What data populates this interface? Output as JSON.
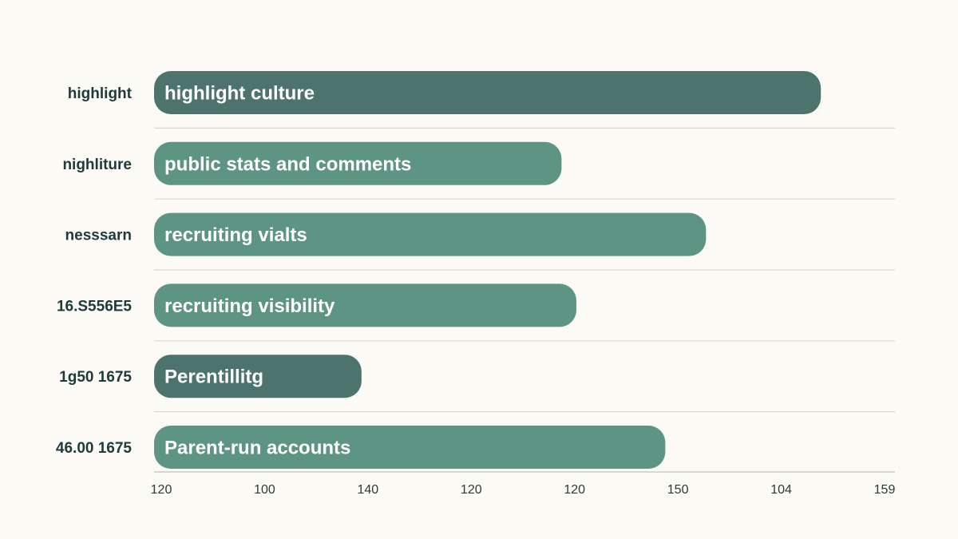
{
  "chart_data": {
    "type": "bar",
    "orientation": "horizontal",
    "categories": [
      "highlight",
      "nighliture",
      "nesssarn",
      "16.S556E5",
      "1g50 1675",
      "46.00 1675"
    ],
    "bar_labels": [
      "highlight culture",
      "public stats and comments",
      "recruiting vialts",
      "recruiting visibility",
      "Perentillitg",
      "Parent-run accounts"
    ],
    "values": [
      0.9,
      0.55,
      0.745,
      0.57,
      0.28,
      0.69
    ],
    "value_scale": "fraction of axis span (axis tick labels are not monotonic)",
    "bar_colors": [
      "#4d746c",
      "#5e9484",
      "#5e9484",
      "#5e9484",
      "#4d746c",
      "#5e9484"
    ],
    "x_tick_labels": [
      "120",
      "100",
      "140",
      "120",
      "120",
      "150",
      "104",
      "159"
    ],
    "title": "",
    "xlabel": "",
    "ylabel": "",
    "grid": true,
    "legend": "none"
  },
  "colors": {
    "background": "#fbfaf4",
    "bar_dark": "#4d746c",
    "bar_light": "#5e9484",
    "text": "#1f3a3a"
  }
}
